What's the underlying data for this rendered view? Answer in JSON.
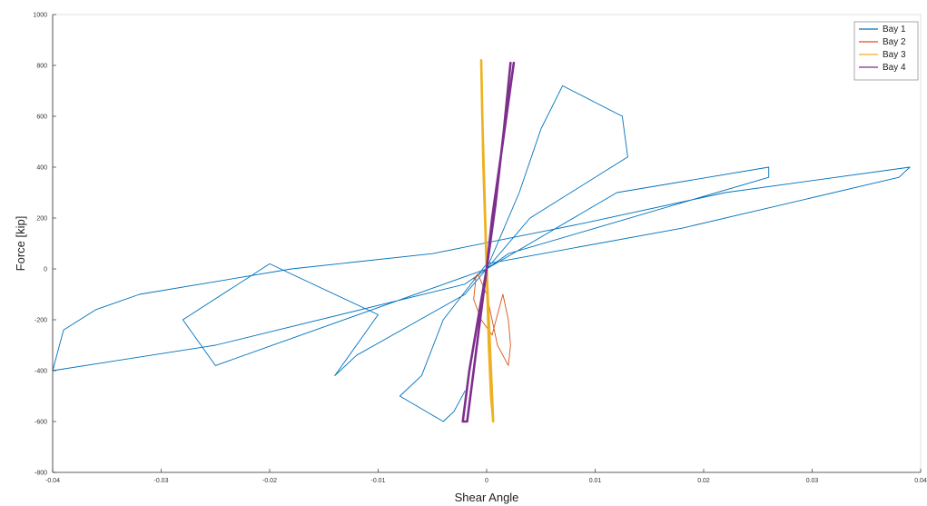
{
  "chart_data": {
    "type": "line",
    "title": "",
    "xlabel": "Shear Angle",
    "ylabel": "Force [kip]",
    "xlim": [
      -0.04,
      0.04
    ],
    "ylim": [
      -800,
      1000
    ],
    "xticks": [
      -0.04,
      -0.03,
      -0.02,
      -0.01,
      0,
      0.01,
      0.02,
      0.03,
      0.04
    ],
    "xtick_labels": [
      "-0.04",
      "-0.03",
      "-0.02",
      "-0.01",
      "0",
      "0.01",
      "0.02",
      "0.03",
      "0.04"
    ],
    "yticks": [
      -800,
      -600,
      -400,
      -200,
      0,
      200,
      400,
      600,
      800,
      1000
    ],
    "ytick_labels": [
      "-800",
      "-600",
      "-400",
      "-200",
      "0",
      "200",
      "400",
      "600",
      "800",
      "1000"
    ],
    "grid": false,
    "legend_position": "top-right",
    "series": [
      {
        "name": "Bay 1",
        "color": "#0072BD",
        "x": [
          0,
          0.003,
          0.005,
          0.007,
          0.0125,
          0.013,
          0.004,
          -0.002,
          -0.012,
          -0.014,
          -0.01,
          -0.02,
          -0.028,
          -0.025,
          0,
          0.012,
          0.026,
          0.026,
          0.002,
          -0.002,
          -0.025,
          -0.04,
          -0.039,
          -0.036,
          -0.032,
          -0.018,
          -0.005,
          0.009,
          0.022,
          0.039,
          0.038,
          0.018,
          0.0,
          -0.004,
          -0.006,
          -0.008,
          -0.004,
          -0.003,
          -0.002
        ],
        "y": [
          0,
          300,
          550,
          720,
          600,
          440,
          200,
          -100,
          -340,
          -420,
          -180,
          20,
          -200,
          -380,
          0,
          300,
          400,
          360,
          60,
          -60,
          -300,
          -400,
          -240,
          -160,
          -100,
          0,
          60,
          180,
          300,
          400,
          360,
          160,
          20,
          -200,
          -420,
          -500,
          -600,
          -560,
          -480
        ]
      },
      {
        "name": "Bay 2",
        "color": "#D95319",
        "x": [
          -0.001,
          -0.0012,
          -0.0005,
          0.0005,
          0.001,
          0.0015,
          0.002,
          0.0022,
          0.002,
          0.001,
          0.0005,
          0,
          -0.0008,
          -0.0012
        ],
        "y": [
          -40,
          -120,
          -200,
          -260,
          -180,
          -100,
          -200,
          -300,
          -380,
          -300,
          -200,
          -100,
          -20,
          -40
        ]
      },
      {
        "name": "Bay 3",
        "color": "#EDB120",
        "x": [
          -0.0005,
          -0.0004,
          -0.0002,
          0,
          0.0002,
          0.0004,
          0.0006,
          0.0003,
          0,
          -0.0003,
          -0.0005
        ],
        "y": [
          820,
          600,
          300,
          0,
          -300,
          -500,
          -600,
          -300,
          0,
          400,
          820
        ]
      },
      {
        "name": "Bay 4",
        "color": "#7E2F8E",
        "x": [
          0.0025,
          0.0015,
          0.0005,
          0,
          -0.0006,
          -0.0012,
          -0.0018,
          -0.0022,
          -0.0016,
          -0.0008,
          0,
          0.0008,
          0.0016,
          0.0022
        ],
        "y": [
          810,
          500,
          200,
          0,
          -200,
          -400,
          -600,
          -600,
          -400,
          -200,
          0,
          250,
          550,
          810
        ]
      }
    ]
  }
}
